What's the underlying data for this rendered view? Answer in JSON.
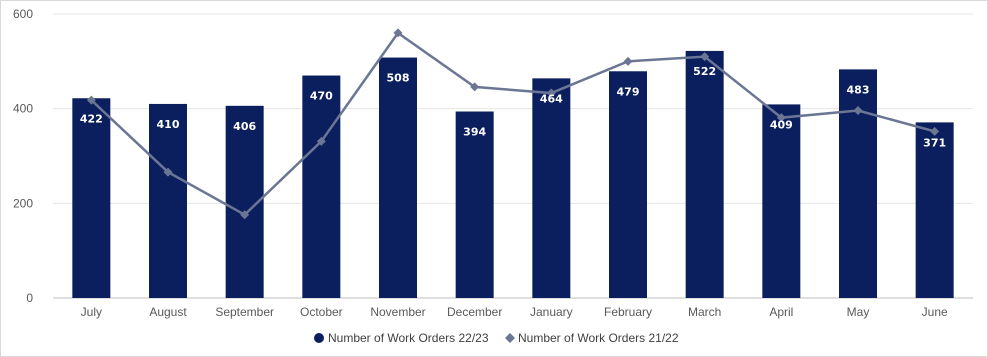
{
  "chart_data": {
    "type": "bar",
    "categories": [
      "July",
      "August",
      "September",
      "October",
      "November",
      "December",
      "January",
      "February",
      "March",
      "April",
      "May",
      "June"
    ],
    "series": [
      {
        "name": "Number of Work Orders 22/23",
        "type": "bar",
        "values": [
          422,
          410,
          406,
          470,
          508,
          394,
          464,
          479,
          522,
          409,
          483,
          371
        ],
        "color": "#0b1f5e"
      },
      {
        "name": "Number of Work Orders 21/22",
        "type": "line",
        "values": [
          418,
          266,
          176,
          331,
          560,
          446,
          433,
          500,
          510,
          381,
          396,
          352
        ],
        "color": "#6b7694"
      }
    ],
    "yticks": [
      0,
      200,
      400,
      600
    ],
    "ylim": [
      0,
      600
    ],
    "grid": true,
    "legend": "bottom-center",
    "data_labels_color": "#ffffff"
  }
}
